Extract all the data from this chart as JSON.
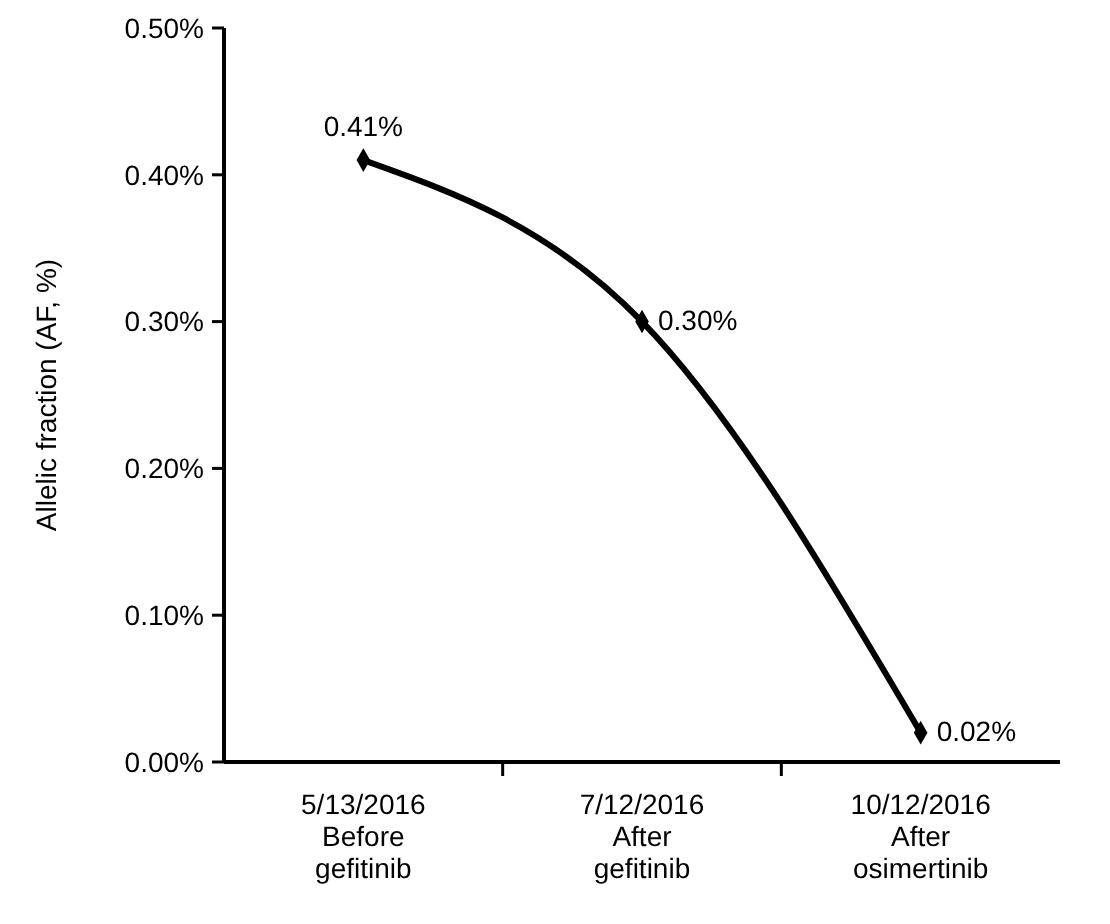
{
  "chart_data": {
    "type": "line",
    "ylabel": "Allelic fraction (AF, %)",
    "categories": [
      "5/13/2016\nBefore\ngefitinib",
      "7/12/2016\nAfter\ngefitinib",
      "10/12/2016\nAfter\nosimertinib"
    ],
    "series": [
      {
        "color": "#000000",
        "values": [
          0.41,
          0.3,
          0.02
        ],
        "value_labels": [
          "0.41%",
          "0.30%",
          "0.02%"
        ]
      }
    ],
    "ylim": [
      0,
      0.5
    ],
    "yticks": [
      {
        "value": 0,
        "label": "0.00%"
      },
      {
        "value": 0.1,
        "label": "0.10%"
      },
      {
        "value": 0.2,
        "label": "0.20%"
      },
      {
        "value": 0.3,
        "label": "0.30%"
      },
      {
        "value": 0.4,
        "label": "0.40%"
      },
      {
        "value": 0.5,
        "label": "0.50%"
      }
    ],
    "grid": false,
    "marker": "diamond",
    "line_style": "solid"
  }
}
